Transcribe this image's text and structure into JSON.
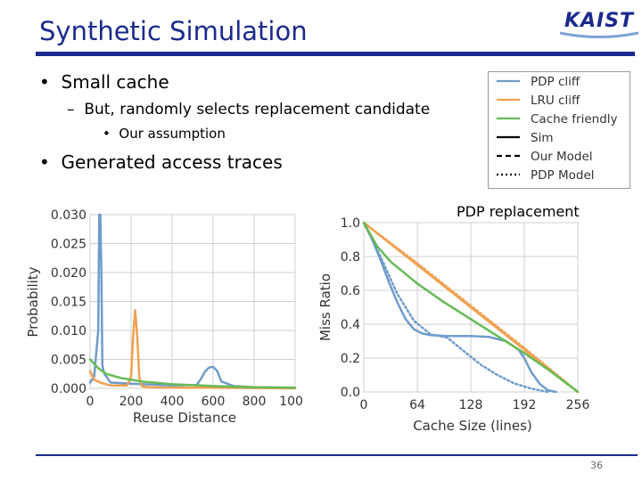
{
  "slide": {
    "title": "Synthetic Simulation",
    "logo_text": "KAIST",
    "bullets": [
      {
        "text": "Small cache"
      },
      {
        "text": "But, randomly selects replacement candidate",
        "marker": "–"
      },
      {
        "text": "Our assumption",
        "marker": "•"
      },
      {
        "text": "Generated access traces"
      }
    ],
    "bullet_marker": "•",
    "pdp_replacement": "PDP replacement",
    "page_number": "36"
  },
  "colors": {
    "accent": "#1b2a8c",
    "pdp_cliff": "#6f9ccc",
    "lru_cliff": "#f0a050",
    "cache_friendly": "#66bb55",
    "sim": "#000000"
  },
  "legend": {
    "entries": [
      {
        "label": "PDP cliff",
        "color": "#6f9ccc",
        "style": "solid"
      },
      {
        "label": "LRU cliff",
        "color": "#f0a050",
        "style": "solid"
      },
      {
        "label": "Cache friendly",
        "color": "#66bb55",
        "style": "solid"
      },
      {
        "label": "Sim",
        "color": "#000000",
        "style": "solid"
      },
      {
        "label": "Our Model",
        "color": "#000000",
        "style": "dashed"
      },
      {
        "label": "PDP Model",
        "color": "#000000",
        "style": "dotted"
      }
    ]
  },
  "chart_data": [
    {
      "type": "line",
      "xlabel": "Reuse Distance",
      "ylabel": "Probability",
      "xlim": [
        0,
        1000
      ],
      "ylim": [
        0,
        0.03
      ],
      "xticks": [
        0,
        200,
        400,
        600,
        800,
        1000
      ],
      "yticks": [
        "0.000",
        "0.005",
        "0.010",
        "0.015",
        "0.020",
        "0.025",
        "0.030"
      ],
      "grid": true,
      "series": [
        {
          "name": "PDP cliff",
          "color": "#6f9ccc",
          "x": [
            0,
            20,
            40,
            45,
            50,
            55,
            60,
            70,
            100,
            200,
            400,
            520,
            540,
            560,
            580,
            600,
            620,
            640,
            700,
            800,
            1000
          ],
          "y": [
            0.001,
            0.002,
            0.01,
            0.032,
            0.031,
            0.02,
            0.004,
            0.0025,
            0.001,
            0.0008,
            0.0005,
            0.0006,
            0.0016,
            0.0029,
            0.0036,
            0.0037,
            0.003,
            0.0012,
            0.0004,
            0.0002,
            0.0001
          ]
        },
        {
          "name": "LRU cliff",
          "color": "#f0a050",
          "x": [
            0,
            20,
            50,
            100,
            180,
            200,
            210,
            220,
            230,
            240,
            250,
            260,
            300,
            400,
            600,
            1000
          ],
          "y": [
            0.003,
            0.0015,
            0.001,
            0.0005,
            0.0005,
            0.002,
            0.009,
            0.0135,
            0.009,
            0.002,
            0.0005,
            0.0003,
            0.0002,
            0.0001,
            0.0001,
            0.0
          ]
        },
        {
          "name": "Cache friendly",
          "color": "#66bb55",
          "x": [
            0,
            40,
            80,
            150,
            250,
            400,
            600,
            800,
            1000
          ],
          "y": [
            0.005,
            0.0035,
            0.0025,
            0.0018,
            0.0012,
            0.0007,
            0.0004,
            0.0002,
            0.0001
          ]
        }
      ]
    },
    {
      "type": "line",
      "xlabel": "Cache Size (lines)",
      "ylabel": "Miss Ratio",
      "xlim": [
        0,
        256
      ],
      "ylim": [
        0,
        1
      ],
      "xticks": [
        0,
        64,
        128,
        192,
        256
      ],
      "yticks": [
        "0.0",
        "0.2",
        "0.4",
        "0.6",
        "0.8",
        "1.0"
      ],
      "grid": true,
      "series": [
        {
          "name": "PDP cliff",
          "style": "solid",
          "color": "#6f9ccc",
          "x": [
            0,
            10,
            20,
            30,
            40,
            50,
            60,
            70,
            80,
            100,
            128,
            150,
            170,
            185,
            192,
            200,
            210,
            220,
            230
          ],
          "y": [
            1.0,
            0.9,
            0.78,
            0.65,
            0.53,
            0.43,
            0.37,
            0.345,
            0.335,
            0.33,
            0.33,
            0.325,
            0.3,
            0.25,
            0.2,
            0.12,
            0.05,
            0.01,
            0.0
          ]
        },
        {
          "name": "PDP cliff model",
          "style": "dotted",
          "color": "#6f9ccc",
          "x": [
            0,
            20,
            40,
            60,
            80,
            100,
            120,
            140,
            160,
            180,
            200,
            220
          ],
          "y": [
            1.0,
            0.8,
            0.58,
            0.42,
            0.34,
            0.32,
            0.24,
            0.16,
            0.1,
            0.05,
            0.02,
            0.0
          ]
        },
        {
          "name": "LRU cliff",
          "style": "solid",
          "color": "#f0a050",
          "x": [
            0,
            64,
            128,
            192,
            256
          ],
          "y": [
            1.0,
            0.75,
            0.5,
            0.25,
            0.0
          ]
        },
        {
          "name": "LRU cliff model",
          "style": "dotted",
          "color": "#f0a050",
          "x": [
            0,
            64,
            128,
            192,
            256
          ],
          "y": [
            1.0,
            0.76,
            0.51,
            0.26,
            0.0
          ]
        },
        {
          "name": "Cache friendly",
          "style": "solid",
          "color": "#66bb55",
          "x": [
            0,
            16,
            32,
            64,
            96,
            128,
            160,
            192,
            224,
            256
          ],
          "y": [
            1.0,
            0.86,
            0.77,
            0.64,
            0.53,
            0.43,
            0.33,
            0.23,
            0.12,
            0.0
          ]
        }
      ]
    }
  ]
}
